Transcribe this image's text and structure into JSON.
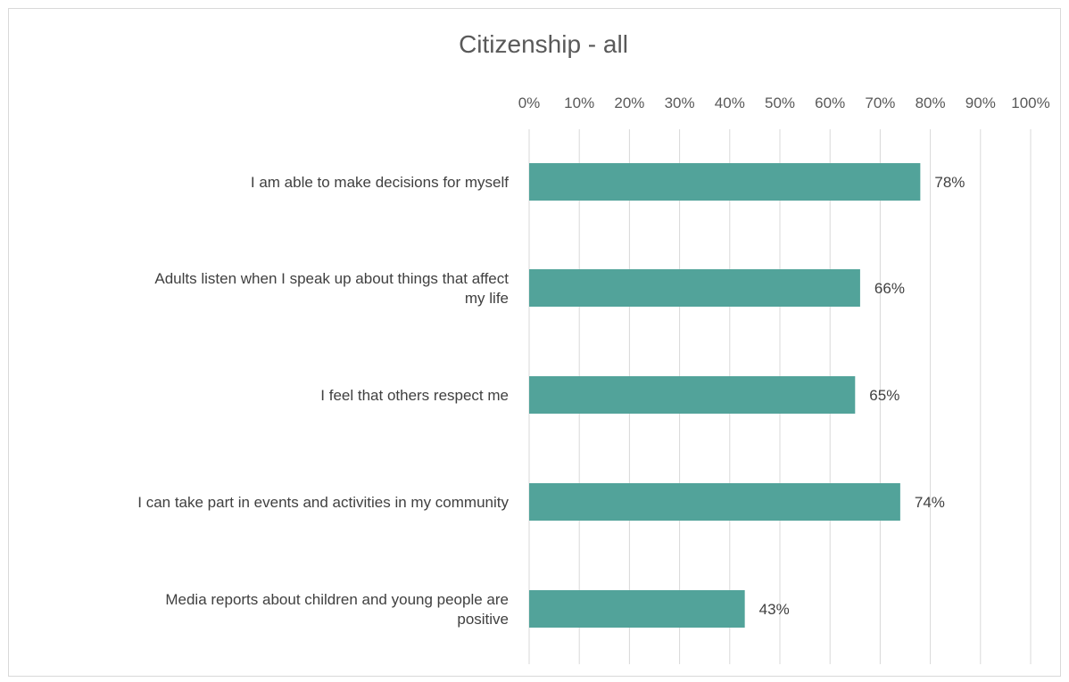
{
  "chart_data": {
    "type": "bar",
    "orientation": "horizontal",
    "title": "Citizenship - all",
    "xlabel": "",
    "ylabel": "",
    "xlim": [
      0,
      100
    ],
    "x_ticks": [
      "0%",
      "10%",
      "20%",
      "30%",
      "40%",
      "50%",
      "60%",
      "70%",
      "80%",
      "90%",
      "100%"
    ],
    "x_axis_position": "top",
    "grid": true,
    "legend": "none",
    "categories": [
      [
        "I am able to make decisions for myself"
      ],
      [
        "Adults listen when I speak up about things that affect",
        "my life"
      ],
      [
        "I feel that others respect me"
      ],
      [
        "I can take part in events and activities in my community"
      ],
      [
        "Media reports about children and young people are",
        "positive"
      ]
    ],
    "values": [
      78,
      66,
      65,
      74,
      43
    ],
    "data_labels": [
      "78%",
      "66%",
      "65%",
      "74%",
      "43%"
    ],
    "bar_color": "#52a39a",
    "grid_color": "#d9d9d9"
  }
}
